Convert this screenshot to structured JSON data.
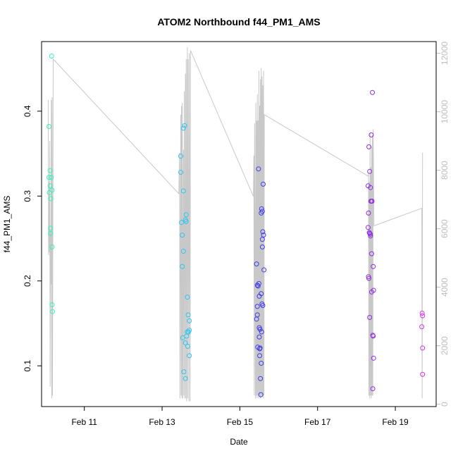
{
  "chart_data": {
    "type": "scatter",
    "title": "ATOM2 Northbound f44_PM1_AMS",
    "xlabel": "Date",
    "ylabel": "f44_PM1_AMS",
    "xlim": [
      9.4,
      19.55
    ],
    "ylim": [
      0.052,
      0.482
    ],
    "y2lim": [
      -80,
      12400
    ],
    "x_ticks": [
      {
        "value": 10.5,
        "label": "Feb 11"
      },
      {
        "value": 12.5,
        "label": "Feb 13"
      },
      {
        "value": 14.5,
        "label": "Feb 15"
      },
      {
        "value": 16.5,
        "label": "Feb 17"
      },
      {
        "value": 18.5,
        "label": "Feb 19"
      }
    ],
    "y_ticks": [
      0.1,
      0.2,
      0.3,
      0.4
    ],
    "y_ticks_labels": [
      "0.1",
      "0.2",
      "0.3",
      "0.4"
    ],
    "y2_ticks": [
      0,
      2000,
      4000,
      6000,
      8000,
      10000,
      12000
    ],
    "y2_ticks_labels": [
      "0",
      "2000",
      "4000",
      "6000",
      "8000",
      "10000",
      "12000"
    ],
    "grid": false,
    "legend": "none",
    "series": [
      {
        "kind": "points",
        "marker": "open-circle",
        "color_scale": [
          "#33f3b8",
          "#2ec6f0",
          "#2b3ff0",
          "#8a2be2",
          "#d43be6"
        ],
        "points": [
          {
            "x": 9.59,
            "y": 0.382,
            "c": 0.0
          },
          {
            "x": 9.59,
            "y": 0.322,
            "c": 0.0
          },
          {
            "x": 9.6,
            "y": 0.304,
            "c": 0.0
          },
          {
            "x": 9.62,
            "y": 0.33,
            "c": 0.0
          },
          {
            "x": 9.62,
            "y": 0.312,
            "c": 0.0
          },
          {
            "x": 9.63,
            "y": 0.262,
            "c": 0.0
          },
          {
            "x": 9.63,
            "y": 0.256,
            "c": 0.0
          },
          {
            "x": 9.64,
            "y": 0.297,
            "c": 0.0
          },
          {
            "x": 9.65,
            "y": 0.322,
            "c": 0.0
          },
          {
            "x": 9.66,
            "y": 0.465,
            "c": 0.0
          },
          {
            "x": 9.67,
            "y": 0.307,
            "c": 0.0
          },
          {
            "x": 9.67,
            "y": 0.24,
            "c": 0.0
          },
          {
            "x": 9.67,
            "y": 0.172,
            "c": 0.0
          },
          {
            "x": 9.68,
            "y": 0.164,
            "c": 0.0
          },
          {
            "x": 12.98,
            "y": 0.347,
            "c": 0.25
          },
          {
            "x": 12.98,
            "y": 0.328,
            "c": 0.25
          },
          {
            "x": 13.0,
            "y": 0.269,
            "c": 0.25
          },
          {
            "x": 13.02,
            "y": 0.254,
            "c": 0.25
          },
          {
            "x": 13.02,
            "y": 0.217,
            "c": 0.25
          },
          {
            "x": 13.03,
            "y": 0.133,
            "c": 0.25
          },
          {
            "x": 13.05,
            "y": 0.38,
            "c": 0.25
          },
          {
            "x": 13.05,
            "y": 0.306,
            "c": 0.25
          },
          {
            "x": 13.05,
            "y": 0.235,
            "c": 0.25
          },
          {
            "x": 13.06,
            "y": 0.093,
            "c": 0.25
          },
          {
            "x": 13.08,
            "y": 0.383,
            "c": 0.25
          },
          {
            "x": 13.1,
            "y": 0.272,
            "c": 0.25
          },
          {
            "x": 13.1,
            "y": 0.127,
            "c": 0.25
          },
          {
            "x": 13.1,
            "y": 0.085,
            "c": 0.25
          },
          {
            "x": 13.12,
            "y": 0.278,
            "c": 0.25
          },
          {
            "x": 13.12,
            "y": 0.27,
            "c": 0.25
          },
          {
            "x": 13.13,
            "y": 0.135,
            "c": 0.25
          },
          {
            "x": 13.15,
            "y": 0.181,
            "c": 0.25
          },
          {
            "x": 13.15,
            "y": 0.14,
            "c": 0.25
          },
          {
            "x": 13.16,
            "y": 0.123,
            "c": 0.25
          },
          {
            "x": 13.17,
            "y": 0.16,
            "c": 0.25
          },
          {
            "x": 13.18,
            "y": 0.14,
            "c": 0.25
          },
          {
            "x": 13.2,
            "y": 0.153,
            "c": 0.25
          },
          {
            "x": 13.2,
            "y": 0.112,
            "c": 0.25
          },
          {
            "x": 13.2,
            "y": 0.142,
            "c": 0.25
          },
          {
            "x": 14.93,
            "y": 0.22,
            "c": 0.55
          },
          {
            "x": 14.93,
            "y": 0.155,
            "c": 0.55
          },
          {
            "x": 14.95,
            "y": 0.195,
            "c": 0.55
          },
          {
            "x": 14.95,
            "y": 0.17,
            "c": 0.55
          },
          {
            "x": 14.95,
            "y": 0.16,
            "c": 0.55
          },
          {
            "x": 14.96,
            "y": 0.122,
            "c": 0.55
          },
          {
            "x": 14.97,
            "y": 0.194,
            "c": 0.55
          },
          {
            "x": 14.98,
            "y": 0.332,
            "c": 0.55
          },
          {
            "x": 14.99,
            "y": 0.197,
            "c": 0.55
          },
          {
            "x": 15.0,
            "y": 0.182,
            "c": 0.55
          },
          {
            "x": 15.0,
            "y": 0.145,
            "c": 0.55
          },
          {
            "x": 15.0,
            "y": 0.134,
            "c": 0.55
          },
          {
            "x": 15.01,
            "y": 0.12,
            "c": 0.55
          },
          {
            "x": 15.01,
            "y": 0.112,
            "c": 0.55
          },
          {
            "x": 15.02,
            "y": 0.143,
            "c": 0.55
          },
          {
            "x": 15.02,
            "y": 0.121,
            "c": 0.55
          },
          {
            "x": 15.03,
            "y": 0.085,
            "c": 0.55
          },
          {
            "x": 15.04,
            "y": 0.066,
            "c": 0.55
          },
          {
            "x": 15.05,
            "y": 0.28,
            "c": 0.55
          },
          {
            "x": 15.05,
            "y": 0.185,
            "c": 0.55
          },
          {
            "x": 15.05,
            "y": 0.103,
            "c": 0.55
          },
          {
            "x": 15.06,
            "y": 0.285,
            "c": 0.55
          },
          {
            "x": 15.06,
            "y": 0.14,
            "c": 0.55
          },
          {
            "x": 15.07,
            "y": 0.173,
            "c": 0.55
          },
          {
            "x": 15.08,
            "y": 0.282,
            "c": 0.55
          },
          {
            "x": 15.08,
            "y": 0.249,
            "c": 0.55
          },
          {
            "x": 15.08,
            "y": 0.24,
            "c": 0.55
          },
          {
            "x": 15.09,
            "y": 0.258,
            "c": 0.55
          },
          {
            "x": 15.09,
            "y": 0.171,
            "c": 0.55
          },
          {
            "x": 15.1,
            "y": 0.314,
            "c": 0.55
          },
          {
            "x": 15.11,
            "y": 0.254,
            "c": 0.55
          },
          {
            "x": 15.12,
            "y": 0.213,
            "c": 0.55
          },
          {
            "x": 17.82,
            "y": 0.358,
            "c": 0.78
          },
          {
            "x": 17.8,
            "y": 0.312,
            "c": 0.78
          },
          {
            "x": 17.81,
            "y": 0.28,
            "c": 0.78
          },
          {
            "x": 17.8,
            "y": 0.263,
            "c": 0.78
          },
          {
            "x": 17.81,
            "y": 0.205,
            "c": 0.78
          },
          {
            "x": 17.82,
            "y": 0.203,
            "c": 0.78
          },
          {
            "x": 17.83,
            "y": 0.257,
            "c": 0.78
          },
          {
            "x": 17.84,
            "y": 0.329,
            "c": 0.78
          },
          {
            "x": 17.84,
            "y": 0.256,
            "c": 0.78
          },
          {
            "x": 17.84,
            "y": 0.157,
            "c": 0.78
          },
          {
            "x": 17.86,
            "y": 0.31,
            "c": 0.78
          },
          {
            "x": 17.86,
            "y": 0.255,
            "c": 0.78
          },
          {
            "x": 17.86,
            "y": 0.253,
            "c": 0.78
          },
          {
            "x": 17.87,
            "y": 0.294,
            "c": 0.78
          },
          {
            "x": 17.88,
            "y": 0.372,
            "c": 0.78
          },
          {
            "x": 17.88,
            "y": 0.294,
            "c": 0.78
          },
          {
            "x": 17.89,
            "y": 0.232,
            "c": 0.78
          },
          {
            "x": 17.89,
            "y": 0.187,
            "c": 0.78
          },
          {
            "x": 17.9,
            "y": 0.294,
            "c": 0.78
          },
          {
            "x": 17.91,
            "y": 0.422,
            "c": 0.78
          },
          {
            "x": 17.92,
            "y": 0.136,
            "c": 0.78
          },
          {
            "x": 17.92,
            "y": 0.073,
            "c": 0.78
          },
          {
            "x": 17.93,
            "y": 0.217,
            "c": 0.78
          },
          {
            "x": 17.93,
            "y": 0.135,
            "c": 0.78
          },
          {
            "x": 17.94,
            "y": 0.189,
            "c": 0.78
          },
          {
            "x": 17.94,
            "y": 0.109,
            "c": 0.78
          },
          {
            "x": 19.19,
            "y": 0.162,
            "c": 1.0
          },
          {
            "x": 19.18,
            "y": 0.146,
            "c": 1.0
          },
          {
            "x": 19.2,
            "y": 0.159,
            "c": 1.0
          },
          {
            "x": 19.2,
            "y": 0.121,
            "c": 1.0
          },
          {
            "x": 19.2,
            "y": 0.09,
            "c": 1.0
          }
        ]
      },
      {
        "kind": "line",
        "axis": "right",
        "color": "#c8c8c8",
        "x": [
          9.57,
          9.58,
          9.59,
          9.6,
          9.61,
          9.62,
          9.63,
          9.64,
          9.65,
          9.66,
          9.67,
          9.68,
          9.7,
          12.93,
          12.95,
          12.96,
          12.98,
          12.99,
          13.0,
          13.01,
          13.02,
          13.03,
          13.05,
          13.06,
          13.07,
          13.08,
          13.1,
          13.11,
          13.12,
          13.13,
          13.15,
          13.16,
          13.17,
          13.19,
          13.2,
          13.22,
          13.23,
          14.85,
          14.86,
          14.87,
          14.88,
          14.9,
          14.91,
          14.92,
          14.93,
          14.94,
          14.95,
          14.96,
          14.97,
          14.98,
          14.99,
          15.0,
          15.01,
          15.02,
          15.03,
          15.04,
          15.05,
          15.06,
          15.07,
          15.08,
          15.09,
          15.1,
          15.11,
          15.12,
          15.13,
          17.8,
          17.81,
          17.82,
          17.83,
          17.84,
          17.85,
          17.86,
          17.87,
          17.88,
          17.89,
          17.9,
          17.91,
          17.92,
          17.93,
          17.95,
          19.18,
          19.19,
          19.2
        ],
        "y": [
          10400,
          5100,
          7600,
          5200,
          9000,
          600,
          5900,
          4100,
          10400,
          200,
          10500,
          300,
          11800,
          7200,
          8600,
          200,
          9900,
          300,
          10200,
          200,
          10300,
          200,
          8700,
          300,
          10700,
          200,
          11300,
          200,
          11800,
          100,
          12200,
          200,
          11800,
          100,
          12000,
          100,
          12100,
          7100,
          8500,
          300,
          9600,
          200,
          10300,
          300,
          9700,
          200,
          10600,
          300,
          9700,
          200,
          11400,
          300,
          10200,
          200,
          11100,
          200,
          11500,
          300,
          11200,
          300,
          10900,
          200,
          11400,
          300,
          9900,
          7800,
          7900,
          300,
          7600,
          200,
          9300,
          300,
          8100,
          200,
          8800,
          300,
          9200,
          300,
          9400,
          6100,
          6700,
          200,
          8600
        ]
      }
    ]
  }
}
